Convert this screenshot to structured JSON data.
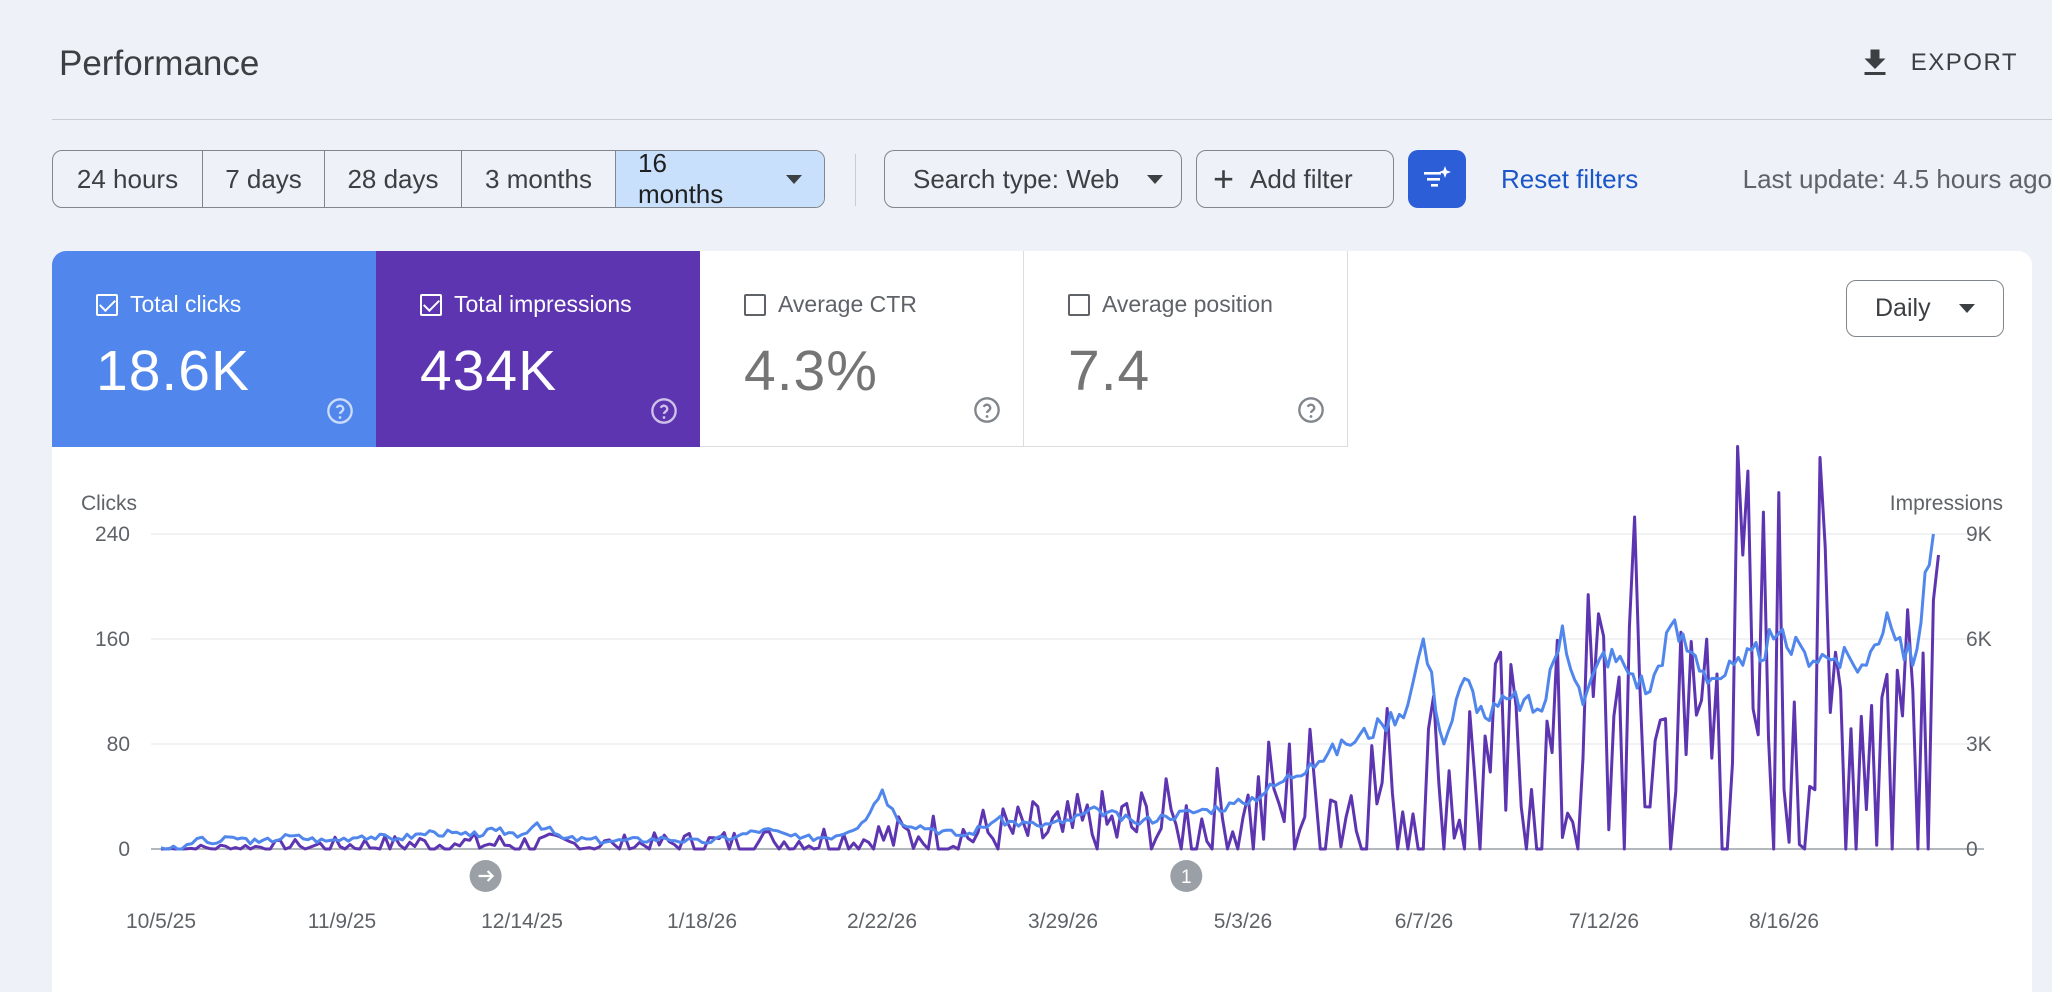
{
  "header": {
    "title": "Performance",
    "export_label": "EXPORT"
  },
  "toolbar": {
    "ranges": [
      "24 hours",
      "7 days",
      "28 days",
      "3 months",
      "16 months"
    ],
    "search_type": "Search type: Web",
    "add_filter": "Add filter",
    "reset_filters": "Reset filters",
    "last_update": "Last update: 4.5 hours ago"
  },
  "metrics": {
    "clicks": {
      "label": "Total clicks",
      "value": "18.6K",
      "checked": true,
      "color": "#5187ec"
    },
    "impressions": {
      "label": "Total impressions",
      "value": "434K",
      "checked": true,
      "color": "#5e35b1"
    },
    "ctr": {
      "label": "Average CTR",
      "value": "4.3%",
      "checked": false
    },
    "position": {
      "label": "Average position",
      "value": "7.4",
      "checked": false
    }
  },
  "granularity": "Daily",
  "chart_data": {
    "type": "line",
    "ylabel_left": "Clicks",
    "ylabel_right": "Impressions",
    "y_left_ticks": [
      "240",
      "160",
      "80",
      "0"
    ],
    "y_right_ticks": [
      "9K",
      "6K",
      "3K",
      "0"
    ],
    "ylim_left": [
      0,
      240
    ],
    "ylim_right": [
      0,
      9000
    ],
    "x_tick_labels": [
      "10/5/25",
      "11/9/25",
      "12/14/25",
      "1/18/26",
      "2/22/26",
      "3/29/26",
      "5/3/26",
      "6/7/26",
      "7/12/26",
      "8/16/26"
    ],
    "xlim": [
      "2025-10-05",
      "2026-09-18"
    ],
    "annotations": [
      {
        "date": "2025-12-07",
        "label": "",
        "kind": "arrow"
      },
      {
        "date": "2026-04-22",
        "label": "1",
        "kind": "number"
      }
    ],
    "grid": true,
    "series": [
      {
        "name": "Total clicks",
        "axis": "left",
        "color": "#5187ec",
        "points": [
          [
            "2025-10-05",
            1
          ],
          [
            "2025-10-09",
            0
          ],
          [
            "2025-10-12",
            8
          ],
          [
            "2025-10-15",
            4
          ],
          [
            "2025-10-19",
            9
          ],
          [
            "2025-10-24",
            5
          ],
          [
            "2025-10-30",
            10
          ],
          [
            "2025-11-06",
            6
          ],
          [
            "2025-11-13",
            10
          ],
          [
            "2025-11-20",
            8
          ],
          [
            "2025-11-27",
            13
          ],
          [
            "2025-12-04",
            10
          ],
          [
            "2025-12-09",
            14
          ],
          [
            "2025-12-14",
            11
          ],
          [
            "2025-12-17",
            20
          ],
          [
            "2025-12-22",
            8
          ],
          [
            "2026-01-01",
            6
          ],
          [
            "2026-01-11",
            8
          ],
          [
            "2026-01-18",
            5
          ],
          [
            "2026-01-25",
            10
          ],
          [
            "2026-01-30",
            15
          ],
          [
            "2026-02-06",
            8
          ],
          [
            "2026-02-13",
            10
          ],
          [
            "2026-02-18",
            20
          ],
          [
            "2026-02-22",
            45
          ],
          [
            "2026-02-25",
            22
          ],
          [
            "2026-03-04",
            15
          ],
          [
            "2026-03-10",
            10
          ],
          [
            "2026-03-16",
            22
          ],
          [
            "2026-03-24",
            18
          ],
          [
            "2026-03-29",
            20
          ],
          [
            "2026-04-05",
            30
          ],
          [
            "2026-04-12",
            20
          ],
          [
            "2026-04-18",
            25
          ],
          [
            "2026-04-26",
            30
          ],
          [
            "2026-05-03",
            35
          ],
          [
            "2026-05-10",
            50
          ],
          [
            "2026-05-16",
            65
          ],
          [
            "2026-05-23",
            80
          ],
          [
            "2026-05-30",
            95
          ],
          [
            "2026-06-04",
            110
          ],
          [
            "2026-06-07",
            160
          ],
          [
            "2026-06-11",
            80
          ],
          [
            "2026-06-15",
            130
          ],
          [
            "2026-06-19",
            100
          ],
          [
            "2026-06-24",
            115
          ],
          [
            "2026-06-30",
            105
          ],
          [
            "2026-07-04",
            170
          ],
          [
            "2026-07-08",
            110
          ],
          [
            "2026-07-12",
            150
          ],
          [
            "2026-07-16",
            140
          ],
          [
            "2026-07-21",
            120
          ],
          [
            "2026-07-25",
            170
          ],
          [
            "2026-07-29",
            150
          ],
          [
            "2026-08-02",
            130
          ],
          [
            "2026-08-08",
            140
          ],
          [
            "2026-08-14",
            160
          ],
          [
            "2026-08-20",
            150
          ],
          [
            "2026-08-26",
            145
          ],
          [
            "2026-09-01",
            140
          ],
          [
            "2026-09-05",
            180
          ],
          [
            "2026-09-10",
            140
          ],
          [
            "2026-09-14",
            240
          ]
        ]
      },
      {
        "name": "Total impressions",
        "axis": "right",
        "color": "#5e35b1",
        "points": [
          [
            "2025-10-05",
            0
          ],
          [
            "2025-11-01",
            80
          ],
          [
            "2025-12-01",
            150
          ],
          [
            "2026-01-01",
            120
          ],
          [
            "2026-02-01",
            200
          ],
          [
            "2026-03-01",
            350
          ],
          [
            "2026-03-29",
            500
          ],
          [
            "2026-04-20",
            700
          ],
          [
            "2026-05-03",
            900
          ],
          [
            "2026-05-10",
            1300
          ],
          [
            "2026-05-20",
            1400
          ],
          [
            "2026-06-01",
            1600
          ],
          [
            "2026-06-10",
            1900
          ],
          [
            "2026-06-20",
            2200
          ],
          [
            "2026-06-28",
            1700
          ],
          [
            "2026-07-08",
            2600
          ],
          [
            "2026-07-14",
            3800
          ],
          [
            "2026-07-22",
            3100
          ],
          [
            "2026-07-28",
            2700
          ],
          [
            "2026-08-03",
            5000
          ],
          [
            "2026-08-10",
            4000
          ],
          [
            "2026-08-18",
            4200
          ],
          [
            "2026-08-25",
            3900
          ],
          [
            "2026-09-02",
            4100
          ],
          [
            "2026-09-08",
            3800
          ],
          [
            "2026-09-12",
            5600
          ],
          [
            "2026-09-15",
            8400
          ]
        ]
      }
    ]
  }
}
